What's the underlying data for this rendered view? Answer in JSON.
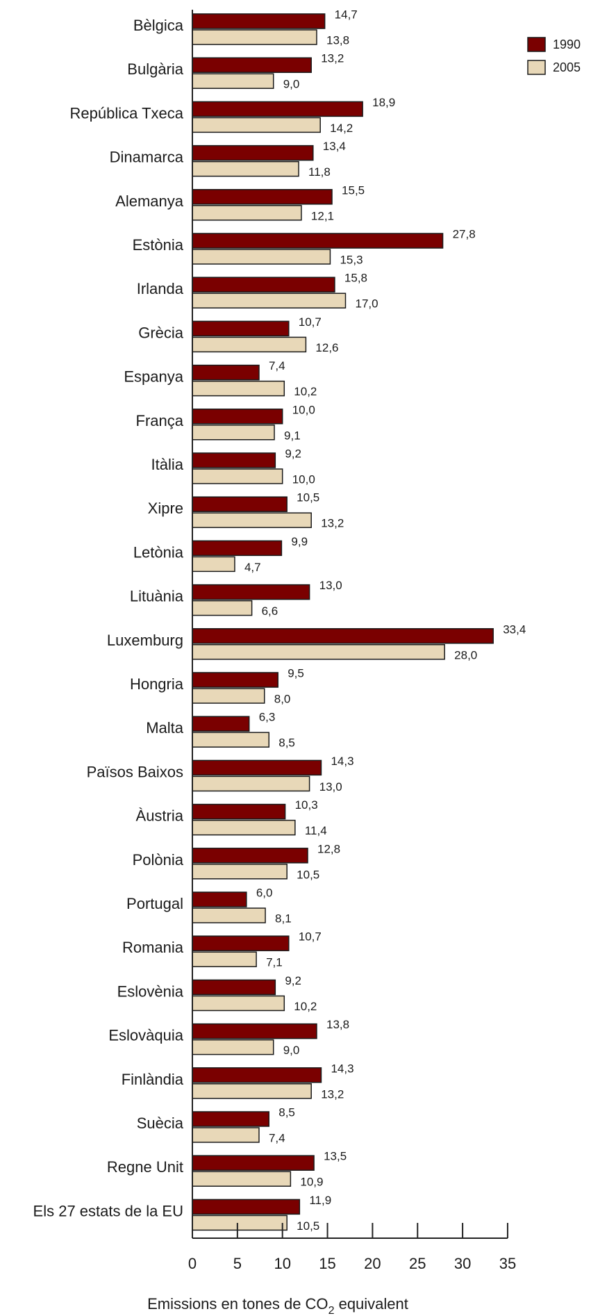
{
  "chart_data": {
    "type": "bar",
    "orientation": "horizontal",
    "categories": [
      "Bèlgica",
      "Bulgària",
      "República Txeca",
      "Dinamarca",
      "Alemanya",
      "Estònia",
      "Irlanda",
      "Grècia",
      "Espanya",
      "França",
      "Itàlia",
      "Xipre",
      "Letònia",
      "Lituània",
      "Luxemburg",
      "Hongria",
      "Malta",
      "Països Baixos",
      "Àustria",
      "Polònia",
      "Portugal",
      "Romania",
      "Eslovènia",
      "Eslovàquia",
      "Finlàndia",
      "Suècia",
      "Regne Unit",
      "Els 27 estats de la EU"
    ],
    "series": [
      {
        "name": "1990",
        "color": "#7a0000",
        "values": [
          14.7,
          13.2,
          18.9,
          13.4,
          15.5,
          27.8,
          15.8,
          10.7,
          7.4,
          10.0,
          9.2,
          10.5,
          9.9,
          13.0,
          33.4,
          9.5,
          6.3,
          14.3,
          10.3,
          12.8,
          6.0,
          10.7,
          9.2,
          13.8,
          14.3,
          8.5,
          13.5,
          11.9
        ],
        "labels": [
          "14,7",
          "13,2",
          "18,9",
          "13,4",
          "15,5",
          "27,8",
          "15,8",
          "10,7",
          "7,4",
          "10,0",
          "9,2",
          "10,5",
          "9,9",
          "13,0",
          "33,4",
          "9,5",
          "6,3",
          "14,3",
          "10,3",
          "12,8",
          "6,0",
          "10,7",
          "9,2",
          "13,8",
          "14,3",
          "8,5",
          "13,5",
          "11,9"
        ]
      },
      {
        "name": "2005",
        "color": "#e8d8b8",
        "values": [
          13.8,
          9.0,
          14.2,
          11.8,
          12.1,
          15.3,
          17.0,
          12.6,
          10.2,
          9.1,
          10.0,
          13.2,
          4.7,
          6.6,
          28.0,
          8.0,
          8.5,
          13.0,
          11.4,
          10.5,
          8.1,
          7.1,
          10.2,
          9.0,
          13.2,
          7.4,
          10.9,
          10.5
        ],
        "labels": [
          "13,8",
          "9,0",
          "14,2",
          "11,8",
          "12,1",
          "15,3",
          "17,0",
          "12,6",
          "10,2",
          "9,1",
          "10,0",
          "13,2",
          "4,7",
          "6,6",
          "28,0",
          "8,0",
          "8,5",
          "13,0",
          "11,4",
          "10,5",
          "8,1",
          "7,1",
          "10,2",
          "9,0",
          "13,2",
          "7,4",
          "10,9",
          "10,5"
        ]
      }
    ],
    "xlim": [
      0,
      35
    ],
    "xticks": [
      "0",
      "5",
      "10",
      "15",
      "20",
      "25",
      "30",
      "35"
    ],
    "xlabel": {
      "pre": "Emissions en tones de CO",
      "sub": "2",
      "post": " equivalent"
    },
    "legend": "top-right",
    "grid": false
  }
}
